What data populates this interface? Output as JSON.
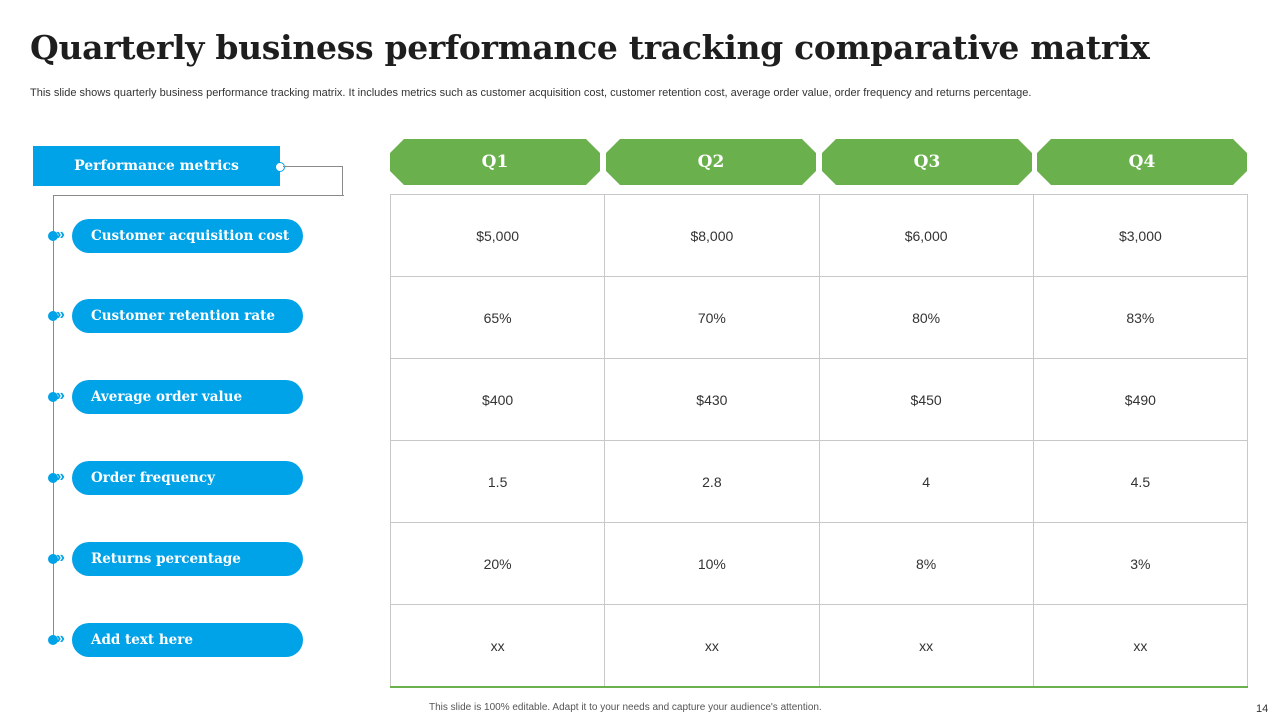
{
  "slide": {
    "title": "Quarterly business performance tracking comparative matrix",
    "subtitle": "This slide shows quarterly business performance tracking matrix. It includes metrics such as customer acquisition cost, customer retention cost, average order value, order frequency and returns percentage.",
    "footer": "This slide is 100% editable.  Adapt it to your needs and capture your audience's attention.",
    "page_number": "14"
  },
  "metrics": {
    "header": "Performance metrics",
    "items": [
      {
        "label": "Customer acquisition cost"
      },
      {
        "label": "Customer retention rate"
      },
      {
        "label": "Average order value"
      },
      {
        "label": "Order frequency"
      },
      {
        "label": "Returns percentage"
      },
      {
        "label": "Add text here"
      }
    ]
  },
  "quarters": [
    "Q1",
    "Q2",
    "Q3",
    "Q4"
  ],
  "matrix": {
    "rows": [
      [
        "$5,000",
        "$8,000",
        "$6,000",
        "$3,000"
      ],
      [
        "65%",
        "70%",
        "80%",
        "83%"
      ],
      [
        "$400",
        "$430",
        "$450",
        "$490"
      ],
      [
        "1.5",
        "2.8",
        "4",
        "4.5"
      ],
      [
        "20%",
        "10%",
        "8%",
        "3%"
      ],
      [
        "xx",
        "xx",
        "xx",
        "xx"
      ]
    ]
  },
  "colors": {
    "blue": "#00a2e8",
    "green": "#6ab04c",
    "grid": "#c8c8c8"
  },
  "icons": {
    "metric_marker": "chevron-right-icon"
  }
}
